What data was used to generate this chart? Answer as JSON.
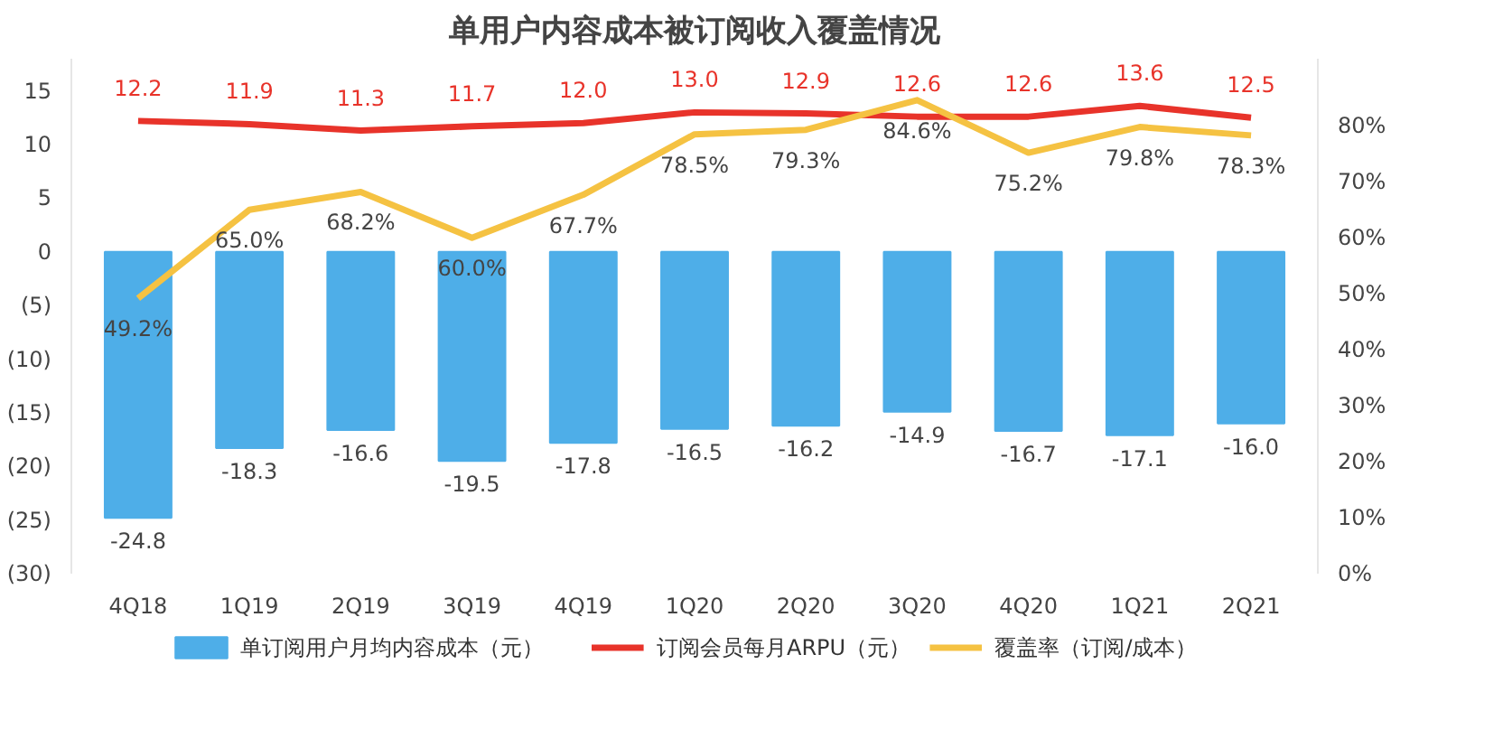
{
  "chart_data": {
    "type": "bar",
    "title": "单用户内容成本被订阅收入覆盖情况",
    "categories": [
      "4Q18",
      "1Q19",
      "2Q19",
      "3Q19",
      "4Q19",
      "1Q20",
      "2Q20",
      "3Q20",
      "4Q20",
      "1Q21",
      "2Q21"
    ],
    "series": [
      {
        "name": "单订阅用户月均内容成本（元）",
        "color": "#4eaee8",
        "values": [
          -24.8,
          -18.3,
          -16.6,
          -19.5,
          -17.8,
          -16.5,
          -16.2,
          -14.9,
          -16.7,
          -17.1,
          -16.0
        ],
        "value_labels": [
          "-24.8",
          "-18.3",
          "-16.6",
          "-19.5",
          "-17.8",
          "-16.5",
          "-16.2",
          "-14.9",
          "-16.7",
          "-17.1",
          "-16.0"
        ]
      },
      {
        "name": "订阅会员每月ARPU（元）",
        "color": "#e8332a",
        "type": "line",
        "values": [
          12.2,
          11.9,
          11.3,
          11.7,
          12.0,
          13.0,
          12.9,
          12.6,
          12.6,
          13.6,
          12.5
        ],
        "value_labels": [
          "12.2",
          "11.9",
          "11.3",
          "11.7",
          "12.0",
          "13.0",
          "12.9",
          "12.6",
          "12.6",
          "13.6",
          "12.5"
        ]
      },
      {
        "name": "覆盖率（订阅/成本）",
        "color": "#f5c242",
        "type": "line",
        "axis": "y2",
        "values": [
          49.2,
          65.0,
          68.2,
          60.0,
          67.7,
          78.5,
          79.3,
          84.6,
          75.2,
          79.8,
          78.3
        ],
        "value_labels": [
          "49.2%",
          "65.0%",
          "68.2%",
          "60.0%",
          "67.7%",
          "78.5%",
          "79.3%",
          "84.6%",
          "75.2%",
          "79.8%",
          "78.3%"
        ]
      }
    ],
    "ylim": [
      -30,
      18
    ],
    "yticks": [
      15,
      10,
      5,
      0,
      {
        "value": -5,
        "label": "(5)"
      },
      {
        "value": -10,
        "label": "(10)"
      },
      {
        "value": -15,
        "label": "(15)"
      },
      {
        "value": -20,
        "label": "(20)"
      },
      {
        "value": -25,
        "label": "(25)"
      },
      {
        "value": -30,
        "label": "(30)"
      }
    ],
    "y2lim": [
      0,
      92
    ],
    "y2ticks": [
      {
        "value": 0,
        "label": "0%"
      },
      {
        "value": 10,
        "label": "10%"
      },
      {
        "value": 20,
        "label": "20%"
      },
      {
        "value": 30,
        "label": "30%"
      },
      {
        "value": 40,
        "label": "40%"
      },
      {
        "value": 50,
        "label": "50%"
      },
      {
        "value": 60,
        "label": "60%"
      },
      {
        "value": 70,
        "label": "70%"
      },
      {
        "value": 80,
        "label": "80%"
      }
    ],
    "grid": false,
    "legend": "bottom",
    "marker": "none",
    "line_style": "solid"
  }
}
